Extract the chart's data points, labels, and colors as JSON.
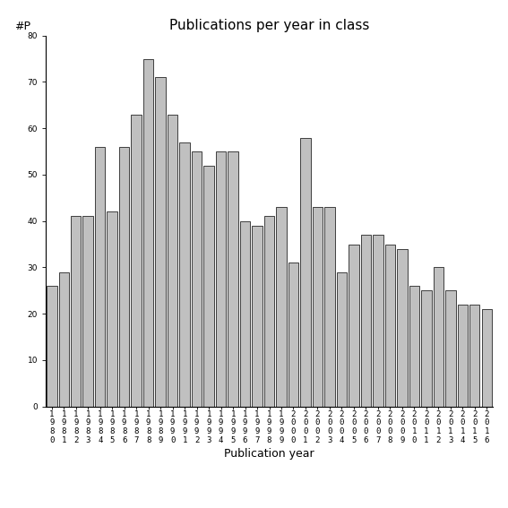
{
  "title": "Publications per year in class",
  "xlabel": "Publication year",
  "ylabel": "#P",
  "bar_color": "#c0c0c0",
  "bar_edgecolor": "#000000",
  "ylim": [
    0,
    80
  ],
  "yticks": [
    0,
    10,
    20,
    30,
    40,
    50,
    60,
    70,
    80
  ],
  "years": [
    "1980",
    "1981",
    "1982",
    "1983",
    "1984",
    "1985",
    "1986",
    "1987",
    "1988",
    "1989",
    "1990",
    "1991",
    "1992",
    "1993",
    "1994",
    "1995",
    "1996",
    "1997",
    "1998",
    "1999",
    "2000",
    "2001",
    "2002",
    "2003",
    "2004",
    "2005",
    "2006",
    "2007",
    "2008",
    "2009",
    "2010",
    "2011",
    "2012",
    "2013",
    "2014",
    "2015",
    "2016"
  ],
  "values": [
    26,
    29,
    41,
    41,
    56,
    42,
    56,
    63,
    75,
    71,
    63,
    57,
    55,
    52,
    55,
    55,
    40,
    39,
    41,
    43,
    31,
    58,
    43,
    43,
    29,
    35,
    37,
    37,
    35,
    34,
    26,
    25,
    30,
    25,
    22,
    22,
    21
  ],
  "background_color": "#ffffff",
  "title_fontsize": 11,
  "label_fontsize": 9,
  "tick_fontsize": 6.5
}
